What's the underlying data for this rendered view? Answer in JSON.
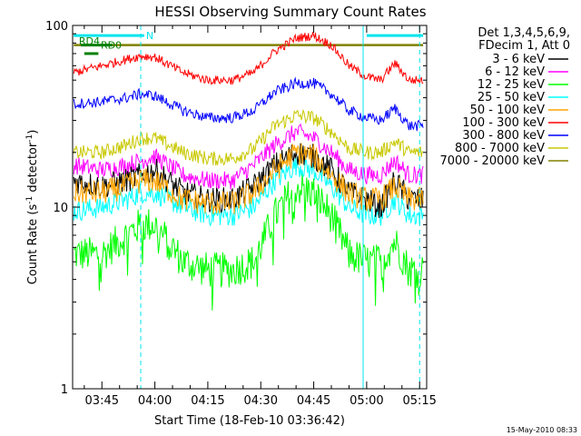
{
  "chart_data": {
    "type": "line",
    "title": "HESSI Observing Summary Count Rates",
    "xlabel": "Start Time (18-Feb-10 03:36:42)",
    "ylabel_main": "Count Rate (s",
    "ylabel_sup1": "-1",
    "ylabel_mid": " detector",
    "ylabel_sup2": "-1",
    "ylabel_end": ")",
    "yscale": "log",
    "xlim": [
      "03:36:42",
      "05:17:00"
    ],
    "ylim": [
      1,
      100
    ],
    "x_ticks": [
      "03:45",
      "04:00",
      "04:15",
      "04:30",
      "04:45",
      "05:00",
      "05:15"
    ],
    "y_ticks": [
      "1",
      "10",
      "100"
    ],
    "legend_header": [
      "Det 1,3,4,5,6,9,",
      "FDecim 1, Att 0"
    ],
    "series": [
      {
        "name": "3 - 6 keV",
        "color": "#000000",
        "x": [
          "03:37",
          "03:45",
          "03:52",
          "03:56",
          "04:00",
          "04:08",
          "04:15",
          "04:22",
          "04:28",
          "04:34",
          "04:40",
          "04:45",
          "04:50",
          "04:55",
          "05:00",
          "05:04",
          "05:08",
          "05:12",
          "05:16"
        ],
        "y": [
          14,
          13,
          14,
          15,
          16,
          12,
          11,
          11,
          13,
          17,
          20,
          19,
          16,
          12,
          11,
          10,
          14,
          11,
          11
        ]
      },
      {
        "name": "6 - 12 keV",
        "color": "#ff00ff",
        "x": [
          "03:37",
          "03:45",
          "03:52",
          "03:56",
          "04:00",
          "04:08",
          "04:15",
          "04:22",
          "04:28",
          "04:34",
          "04:40",
          "04:45",
          "04:50",
          "04:55",
          "05:00",
          "05:04",
          "05:08",
          "05:12",
          "05:16"
        ],
        "y": [
          17,
          16,
          17,
          18,
          19,
          15,
          14,
          14,
          17,
          22,
          26,
          24,
          20,
          16,
          15,
          15,
          18,
          15,
          15
        ]
      },
      {
        "name": "12 - 25 keV",
        "color": "#00ff00",
        "x": [
          "03:37",
          "03:45",
          "03:52",
          "03:56",
          "04:00",
          "04:08",
          "04:15",
          "04:22",
          "04:28",
          "04:34",
          "04:40",
          "04:45",
          "04:50",
          "04:55",
          "05:00",
          "05:04",
          "05:08",
          "05:12",
          "05:16"
        ],
        "y": [
          5.5,
          5.5,
          7,
          8,
          8,
          5,
          4.5,
          4.5,
          5,
          9,
          13,
          12,
          9,
          5.5,
          5,
          5,
          6.5,
          4.5,
          4.5
        ]
      },
      {
        "name": "25 - 50 keV",
        "color": "#00ffff",
        "x": [
          "03:37",
          "03:45",
          "03:52",
          "03:56",
          "04:00",
          "04:08",
          "04:15",
          "04:22",
          "04:28",
          "04:34",
          "04:40",
          "04:45",
          "04:50",
          "04:55",
          "05:00",
          "05:04",
          "05:08",
          "05:12",
          "05:16"
        ],
        "y": [
          9.5,
          10,
          11,
          12,
          12,
          10,
          9,
          9,
          10,
          14,
          17,
          16,
          13,
          10,
          9,
          9,
          11,
          9,
          9
        ]
      },
      {
        "name": "50 - 100 keV",
        "color": "#ffa500",
        "x": [
          "03:37",
          "03:45",
          "03:52",
          "03:56",
          "04:00",
          "04:08",
          "04:15",
          "04:22",
          "04:28",
          "04:34",
          "04:40",
          "04:45",
          "04:50",
          "04:55",
          "05:00",
          "05:04",
          "05:08",
          "05:12",
          "05:16"
        ],
        "y": [
          12,
          12,
          13,
          14,
          14,
          11,
          10.5,
          10.5,
          12,
          16,
          20,
          19,
          15,
          12,
          11,
          11,
          13,
          11,
          11
        ]
      },
      {
        "name": "100 - 300 keV",
        "color": "#ff0000",
        "x": [
          "03:37",
          "03:45",
          "03:52",
          "03:56",
          "04:00",
          "04:08",
          "04:15",
          "04:22",
          "04:28",
          "04:34",
          "04:40",
          "04:45",
          "04:50",
          "04:55",
          "05:00",
          "05:04",
          "05:08",
          "05:12",
          "05:16"
        ],
        "y": [
          55,
          60,
          65,
          68,
          67,
          55,
          50,
          50,
          55,
          72,
          85,
          88,
          78,
          60,
          52,
          50,
          62,
          50,
          50
        ]
      },
      {
        "name": "300 - 800 keV",
        "color": "#0000ff",
        "x": [
          "03:37",
          "03:45",
          "03:52",
          "03:56",
          "04:00",
          "04:08",
          "04:15",
          "04:22",
          "04:28",
          "04:34",
          "04:40",
          "04:45",
          "04:50",
          "04:55",
          "05:00",
          "05:04",
          "05:08",
          "05:12",
          "05:16"
        ],
        "y": [
          37,
          38,
          40,
          42,
          41,
          34,
          31,
          31,
          34,
          43,
          48,
          48,
          42,
          34,
          31,
          30,
          35,
          28,
          28
        ]
      },
      {
        "name": "800 - 7000 keV",
        "color": "#c8c800",
        "x": [
          "03:37",
          "03:45",
          "03:52",
          "03:56",
          "04:00",
          "04:08",
          "04:15",
          "04:22",
          "04:28",
          "04:34",
          "04:40",
          "04:45",
          "04:50",
          "04:55",
          "05:00",
          "05:04",
          "05:08",
          "05:12",
          "05:16"
        ],
        "y": [
          20,
          20,
          22,
          24,
          24,
          20,
          18.5,
          18.5,
          21,
          28,
          32,
          31,
          26,
          21,
          20,
          20,
          23,
          20,
          20
        ]
      },
      {
        "name": "7000 - 20000 keV",
        "color": "#808000",
        "x": [
          "03:37",
          "03:55",
          "04:40",
          "04:48",
          "05:16"
        ],
        "y": [
          78,
          78,
          78,
          78,
          78
        ]
      }
    ],
    "annotations": [
      {
        "text": "N",
        "color": "#00e5ee",
        "segments": [
          [
            "03:37",
            "03:57"
          ],
          [
            "05:00",
            "05:16"
          ]
        ],
        "level": 88
      },
      {
        "text": "RD0",
        "color": "#008000",
        "segments": [
          [
            "03:39",
            "03:48"
          ]
        ],
        "level": 78
      },
      {
        "text": "RD4",
        "color": "#008000",
        "segments": [
          [
            "03:40",
            "03:44"
          ]
        ],
        "level": 70
      }
    ],
    "vertical_lines": [
      {
        "x": "03:56",
        "style": "dashed",
        "color": "#00e5ee"
      },
      {
        "x": "04:59",
        "style": "solid",
        "color": "#00e5ee"
      },
      {
        "x": "05:15",
        "style": "dashed",
        "color": "#00e5ee"
      }
    ],
    "footer": "15-May-2010 08:33"
  }
}
